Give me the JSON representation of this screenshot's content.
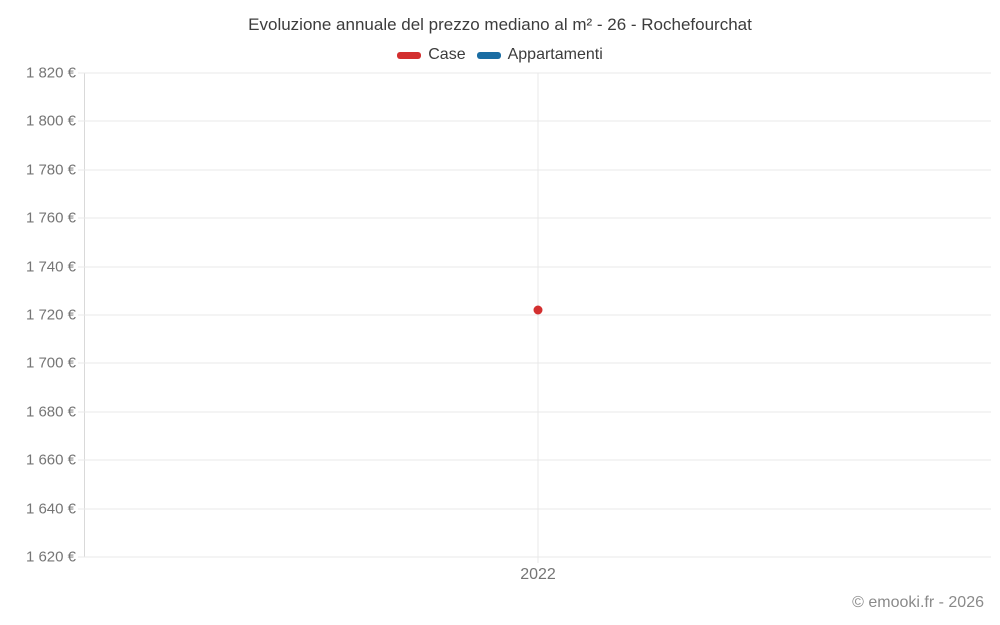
{
  "chart_data": {
    "type": "scatter",
    "title": "Evoluzione annuale del prezzo mediano al m² - 26 - Rochefourchat",
    "xlabel": "",
    "ylabel": "",
    "x_categories": [
      "2022"
    ],
    "ylim": [
      1620,
      1820
    ],
    "ytick_step": 20,
    "yticks": [
      {
        "value": 1820,
        "label": "1 820 €"
      },
      {
        "value": 1800,
        "label": "1 800 €"
      },
      {
        "value": 1780,
        "label": "1 780 €"
      },
      {
        "value": 1760,
        "label": "1 760 €"
      },
      {
        "value": 1740,
        "label": "1 740 €"
      },
      {
        "value": 1720,
        "label": "1 720 €"
      },
      {
        "value": 1700,
        "label": "1 700 €"
      },
      {
        "value": 1680,
        "label": "1 680 €"
      },
      {
        "value": 1660,
        "label": "1 660 €"
      },
      {
        "value": 1640,
        "label": "1 640 €"
      },
      {
        "value": 1620,
        "label": "1 620 €"
      }
    ],
    "grid": true,
    "legend_position": "top",
    "series": [
      {
        "name": "Case",
        "color": "#d32f2f",
        "points": [
          {
            "x": "2022",
            "y": 1722
          }
        ]
      },
      {
        "name": "Appartamenti",
        "color": "#1a6da3",
        "points": []
      }
    ]
  },
  "footer": {
    "copyright": "© emooki.fr - 2026"
  },
  "colors": {
    "background": "#ffffff",
    "gridline": "#e9e9e9",
    "axis_line": "#d9d9d9",
    "title_text": "#3c3c3c",
    "tick_text": "#757575",
    "copyright_text": "#8a8a8a"
  }
}
